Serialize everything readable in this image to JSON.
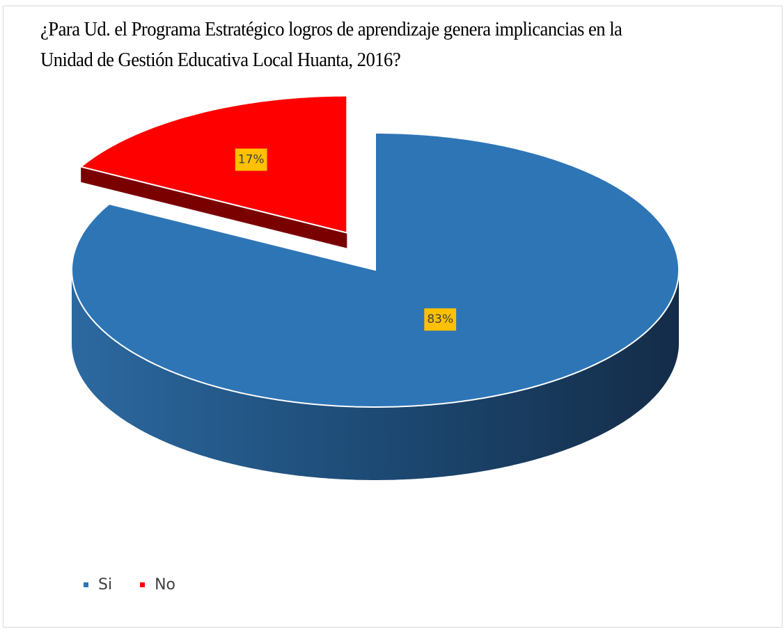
{
  "chart_data": {
    "type": "pie",
    "title": "¿Para Ud. el Programa Estratégico logros de aprendizaje genera implicancias en la Unidad de Gestión Educativa Local Huanta, 2016?",
    "categories": [
      "Si",
      "No"
    ],
    "values": [
      83,
      17
    ],
    "value_labels": [
      "83%",
      "17%"
    ],
    "colors": [
      "#2e75b6",
      "#ff0000"
    ],
    "legend": "bottom-left"
  }
}
